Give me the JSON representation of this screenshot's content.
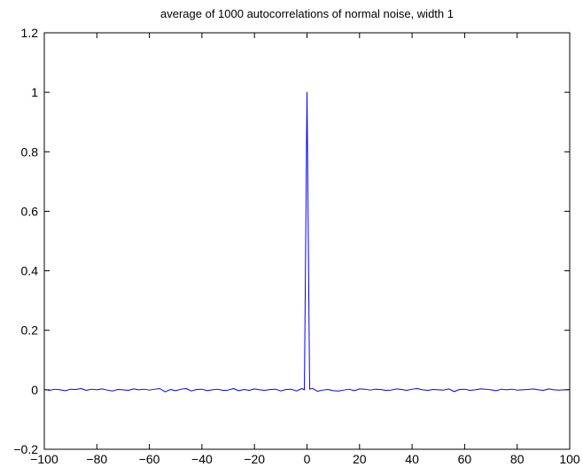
{
  "chart_data": {
    "type": "line",
    "title": "average of 1000 autocorrelations of normal noise, width 1",
    "xlabel": "",
    "ylabel": "",
    "xlim": [
      -100,
      100
    ],
    "ylim": [
      -0.2,
      1.2
    ],
    "xticks": [
      -100,
      -80,
      -60,
      -40,
      -20,
      0,
      20,
      40,
      60,
      80,
      100
    ],
    "yticks": [
      -0.2,
      0,
      0.2,
      0.4,
      0.6,
      0.8,
      1,
      1.2
    ],
    "xtick_labels": [
      "−100",
      "−80",
      "−60",
      "−40",
      "−20",
      "0",
      "20",
      "40",
      "60",
      "80",
      "100"
    ],
    "ytick_labels": [
      "−0.2",
      "0",
      "0.2",
      "0.4",
      "0.6",
      "0.8",
      "1",
      "1.2"
    ],
    "grid": false,
    "series": [
      {
        "color": "#0000ff",
        "x": [
          -100,
          -98,
          -96,
          -94,
          -92,
          -90,
          -88,
          -86,
          -84,
          -82,
          -80,
          -78,
          -76,
          -74,
          -72,
          -70,
          -68,
          -66,
          -64,
          -62,
          -60,
          -58,
          -56,
          -54,
          -52,
          -50,
          -48,
          -46,
          -44,
          -42,
          -40,
          -38,
          -36,
          -34,
          -32,
          -30,
          -28,
          -26,
          -24,
          -22,
          -20,
          -18,
          -16,
          -14,
          -12,
          -10,
          -8,
          -6,
          -4,
          -2,
          -1,
          0,
          1,
          2,
          4,
          6,
          8,
          10,
          12,
          14,
          16,
          18,
          20,
          22,
          24,
          26,
          28,
          30,
          32,
          34,
          36,
          38,
          40,
          42,
          44,
          46,
          48,
          50,
          52,
          54,
          56,
          58,
          60,
          62,
          64,
          66,
          68,
          70,
          72,
          74,
          76,
          78,
          80,
          82,
          84,
          86,
          88,
          90,
          92,
          94,
          96,
          98,
          100
        ],
        "y": [
          0.001,
          -0.002,
          0.002,
          0.0,
          -0.003,
          0.002,
          0.001,
          0.004,
          -0.002,
          0.002,
          0.0,
          0.003,
          -0.001,
          -0.004,
          0.001,
          0.0,
          -0.002,
          0.003,
          0.0,
          0.002,
          -0.001,
          0.002,
          0.004,
          -0.007,
          0.001,
          -0.003,
          0.002,
          0.004,
          -0.004,
          0.001,
          0.002,
          -0.003,
          0.0,
          0.002,
          -0.002,
          -0.001,
          0.004,
          -0.003,
          0.001,
          -0.002,
          0.003,
          0.0,
          -0.002,
          0.001,
          0.002,
          -0.004,
          0.001,
          0.002,
          -0.004,
          0.004,
          0.0,
          1.0,
          0.002,
          0.005,
          -0.005,
          -0.001,
          0.001,
          -0.003,
          -0.004,
          -0.001,
          0.002,
          -0.003,
          0.003,
          0.002,
          -0.001,
          0.002,
          0.001,
          -0.002,
          -0.001,
          0.003,
          0.001,
          -0.002,
          0.002,
          0.004,
          0.0,
          -0.002,
          0.001,
          0.0,
          -0.001,
          0.003,
          -0.006,
          0.001,
          0.002,
          -0.002,
          0.0,
          0.003,
          0.002,
          0.0,
          -0.003,
          0.002,
          0.0,
          0.002,
          -0.001,
          0.0,
          0.001,
          0.003,
          0.0,
          -0.002,
          0.003,
          0.0,
          -0.001,
          0.0,
          0.001
        ]
      }
    ]
  }
}
